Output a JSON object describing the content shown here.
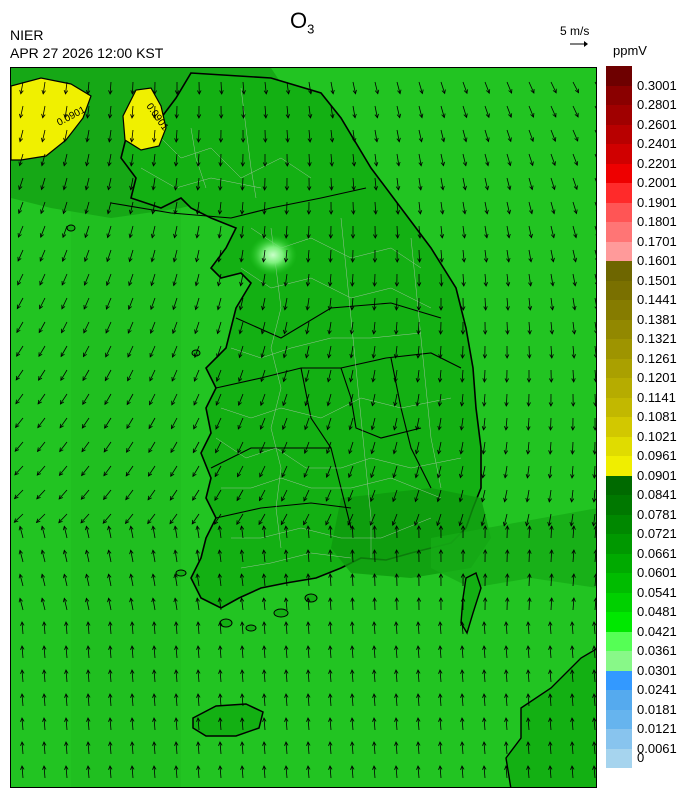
{
  "header": {
    "title_main": "O",
    "title_sub": "3",
    "organization": "NIER",
    "datetime": "APR 27 2026 12:00 KST",
    "reference_vector_label": "5 m/s",
    "unit": "ppmV"
  },
  "map": {
    "contour_label": "0.0901",
    "colors": {
      "sea_green": "#22cc22",
      "land_green": "#11b811",
      "dark_green": "#0d9e0d",
      "light_green": "#7cf07c",
      "yellow": "#f0f000",
      "boundary": "#000000",
      "admin_lines": "#c8c8c8"
    }
  },
  "legend": {
    "labels": [
      "0.3001",
      "0.2801",
      "0.2601",
      "0.2401",
      "0.2201",
      "0.2001",
      "0.1901",
      "0.1801",
      "0.1701",
      "0.1601",
      "0.1501",
      "0.1441",
      "0.1381",
      "0.1321",
      "0.1261",
      "0.1201",
      "0.1141",
      "0.1081",
      "0.1021",
      "0.0961",
      "0.0901",
      "0.0841",
      "0.0781",
      "0.0721",
      "0.0661",
      "0.0601",
      "0.0541",
      "0.0481",
      "0.0421",
      "0.0361",
      "0.0301",
      "0.0241",
      "0.0181",
      "0.0121",
      "0.0061",
      "0"
    ],
    "colors": [
      "#6e0000",
      "#8a0000",
      "#a00000",
      "#b80000",
      "#d00000",
      "#ee0000",
      "#ff2a2a",
      "#ff5555",
      "#ff7575",
      "#ff9a9a",
      "#6e6600",
      "#7a7000",
      "#867c00",
      "#928800",
      "#9e9400",
      "#aaa000",
      "#b6ac00",
      "#c2b800",
      "#d2c800",
      "#e0dc00",
      "#f0ee00",
      "#006a00",
      "#007800",
      "#008800",
      "#009800",
      "#00aa00",
      "#00bc00",
      "#00d000",
      "#00e800",
      "#55ff55",
      "#88f888",
      "#3399ff",
      "#55aaee",
      "#66b4ee",
      "#88c4ee",
      "#a6d4ee"
    ]
  }
}
